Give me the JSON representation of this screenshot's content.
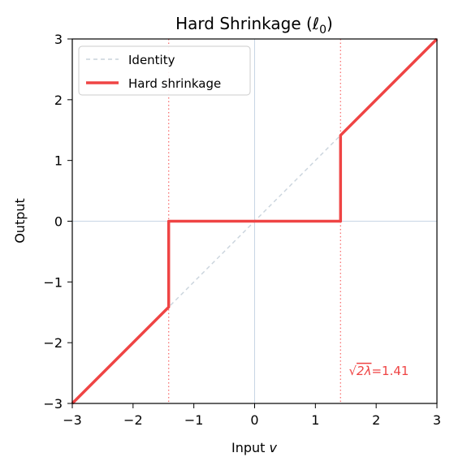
{
  "chart_data": {
    "type": "line",
    "title": "Hard Shrinkage (ℓ0)",
    "title_main": "Hard Shrinkage (",
    "title_symbol": "ℓ",
    "title_subscript": "0",
    "title_close": ")",
    "xlabel_main": "Input ",
    "xlabel_var": "v",
    "ylabel": "Output",
    "xlim": [
      -3,
      3
    ],
    "ylim": [
      -3,
      3
    ],
    "x_ticks": [
      -3,
      -2,
      -1,
      0,
      1,
      2,
      3
    ],
    "y_ticks": [
      -3,
      -2,
      -1,
      0,
      1,
      2,
      3
    ],
    "x_tick_labels": [
      "−3",
      "−2",
      "−1",
      "0",
      "1",
      "2",
      "3"
    ],
    "y_tick_labels": [
      "−3",
      "−2",
      "−1",
      "0",
      "1",
      "2",
      "3"
    ],
    "threshold": 1.414,
    "legend_position": "top-left",
    "series": [
      {
        "name": "Identity",
        "style": "dashed",
        "color": "#c9d3dc",
        "points": [
          [
            -3,
            -3
          ],
          [
            3,
            3
          ]
        ]
      },
      {
        "name": "Hard shrinkage",
        "style": "solid",
        "color": "#ef4444",
        "points": [
          [
            -3,
            -3
          ],
          [
            -1.414,
            -1.414
          ],
          [
            -1.414,
            0
          ],
          [
            1.414,
            0
          ],
          [
            1.414,
            1.414
          ],
          [
            3,
            3
          ]
        ]
      }
    ],
    "reference_lines": {
      "axis_color": "#c8d6e5",
      "threshold_color": "#f87171",
      "vertical_x": [
        -1.414,
        1.414
      ]
    },
    "annotation": {
      "sqrt_symbol": "√",
      "text_radicand": "2λ",
      "text_value": "=1.41",
      "x": 1.55,
      "y": -2.45,
      "color": "#ef4444"
    }
  }
}
